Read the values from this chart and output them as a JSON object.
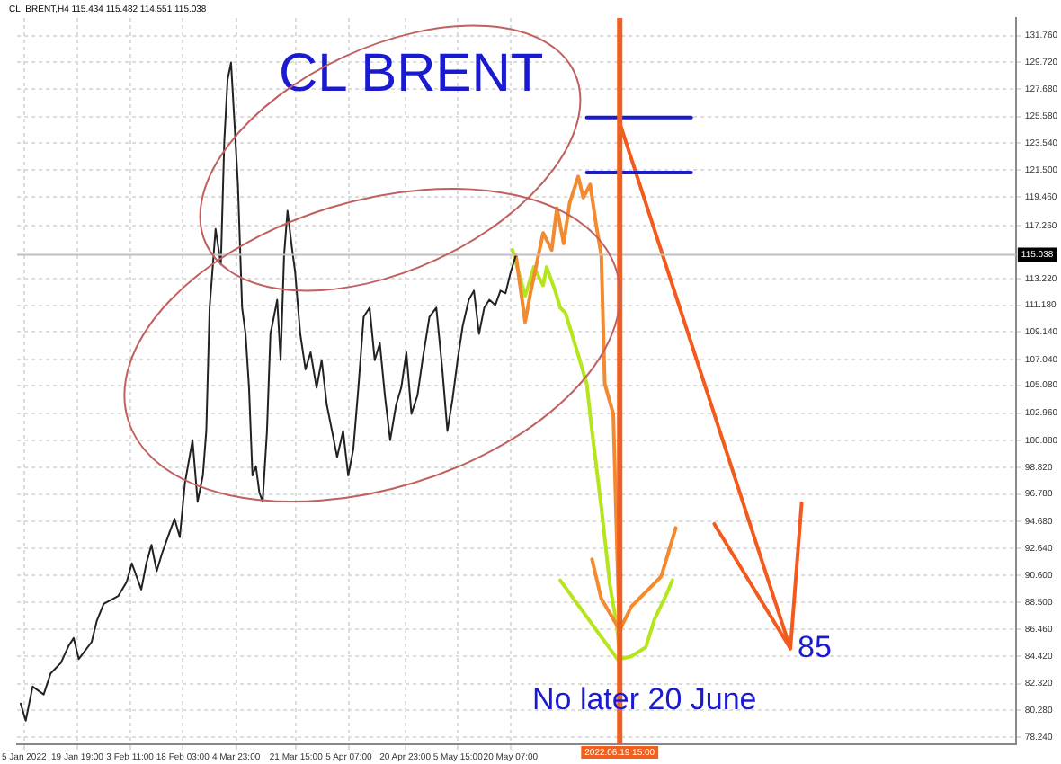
{
  "chart_data": {
    "type": "line",
    "title": "CL_BRENT,H4 115.434 115.482 114.551 115.038",
    "annotations": [
      "CL BRENT",
      "No later 20 June",
      {
        "text": "85",
        "x": "2022-08-06T02:00",
        "y": 85
      }
    ],
    "series": [
      {
        "color": "#222222",
        "x": [
          "2022-01-04T01:00",
          "2022-01-05T11:00",
          "2022-01-07T09:00",
          "2022-01-10T11:00",
          "2022-01-12T09:00",
          "2022-01-15T05:00",
          "2022-01-17T09:00",
          "2022-01-18T19:00",
          "2022-01-20T05:00",
          "2022-01-23T19:00",
          "2022-01-25T05:00",
          "2022-01-27T03:00",
          "2022-01-31T04:00",
          "2022-02-02T13:00",
          "2022-02-03T23:00",
          "2022-02-06T14:00",
          "2022-02-08T00:00",
          "2022-02-09T10:00",
          "2022-02-10T21:00",
          "2022-02-12T07:00",
          "2022-02-13T23:00",
          "2022-02-15T20:00",
          "2022-02-17T07:00",
          "2022-02-18T17:00",
          "2022-02-20T20:00",
          "2022-02-22T06:00",
          "2022-02-23T17:00",
          "2022-02-24T16:00",
          "2022-02-25T14:00",
          "2022-02-27T06:00",
          "2022-02-28T17:00",
          "2022-03-01T16:00",
          "2022-03-02T14:00",
          "2022-03-03T13:00",
          "2022-03-04T12:00",
          "2022-03-05T11:00",
          "2022-03-06T15:00",
          "2022-03-07T14:00",
          "2022-03-08T13:00",
          "2022-03-09T12:00",
          "2022-03-10T11:00",
          "2022-03-11T10:00",
          "2022-03-12T08:00",
          "2022-03-13T13:00",
          "2022-03-14T12:00",
          "2022-03-15T11:00",
          "2022-03-16T09:00",
          "2022-03-17T08:00",
          "2022-03-18T07:00",
          "2022-03-19T06:00",
          "2022-03-20T10:00",
          "2022-03-21T09:00",
          "2022-03-22T19:00",
          "2022-03-24T06:00",
          "2022-03-25T16:00",
          "2022-03-27T08:00",
          "2022-03-28T18:00",
          "2022-03-30T04:00",
          "2022-03-31T15:00",
          "2022-04-02T01:00",
          "2022-04-03T17:00",
          "2022-04-05T03:00",
          "2022-04-06T13:00",
          "2022-04-07T23:00",
          "2022-04-09T10:00",
          "2022-04-11T02:00",
          "2022-04-12T12:00",
          "2022-04-13T22:00",
          "2022-04-15T08:00",
          "2022-04-16T19:00",
          "2022-04-18T11:00",
          "2022-04-19T21:00",
          "2022-04-21T07:00",
          "2022-04-22T17:00",
          "2022-04-24T09:00",
          "2022-04-25T19:00",
          "2022-04-27T17:00",
          "2022-04-29T15:00",
          "2022-05-01T07:00",
          "2022-05-02T17:00",
          "2022-05-04T03:00",
          "2022-05-05T13:00",
          "2022-05-06T23:00",
          "2022-05-08T16:00",
          "2022-05-10T02:00",
          "2022-05-11T12:00",
          "2022-05-12T23:00",
          "2022-05-14T09:00",
          "2022-05-16T01:00",
          "2022-05-17T11:00",
          "2022-05-18T21:00",
          "2022-05-20T07:00",
          "2022-05-21T18:00"
        ],
        "values": [
          80.8,
          79.5,
          82.1,
          81.5,
          83.1,
          83.9,
          85.2,
          85.8,
          84.2,
          85.5,
          87.1,
          88.4,
          89.0,
          90.1,
          91.5,
          89.5,
          91.5,
          92.9,
          90.9,
          92.2,
          93.5,
          94.9,
          93.5,
          97.6,
          100.9,
          96.2,
          98.2,
          101.6,
          111.0,
          117.0,
          114.3,
          123.7,
          128.4,
          129.7,
          125.1,
          120.4,
          111.0,
          109.0,
          104.9,
          98.2,
          98.9,
          96.9,
          96.2,
          101.6,
          109.0,
          110.3,
          111.6,
          107.0,
          115.0,
          118.4,
          115.7,
          113.7,
          109.0,
          106.3,
          107.6,
          104.9,
          107.0,
          103.6,
          101.6,
          99.6,
          101.6,
          98.2,
          100.2,
          104.9,
          110.3,
          111.0,
          107.0,
          108.3,
          104.3,
          100.9,
          103.6,
          104.9,
          107.6,
          102.9,
          104.3,
          107.0,
          110.3,
          111.0,
          106.3,
          101.6,
          104.0,
          107.0,
          109.6,
          111.6,
          112.3,
          109.0,
          111.0,
          111.6,
          111.2,
          112.3,
          112.1,
          113.7,
          115.0
        ]
      },
      {
        "color": "#f28a30",
        "x": [
          "2022-05-21T18:00",
          "2022-05-24T08:00",
          "2022-05-25T19:00",
          "2022-05-29T08:00",
          "2022-05-31T17:00",
          "2022-06-02T04:00",
          "2022-06-04T01:00",
          "2022-06-05T17:00",
          "2022-06-08T02:00",
          "2022-06-09T12:00",
          "2022-06-11T10:00",
          "2022-06-13T02:00",
          "2022-06-14T12:00",
          "2022-06-15T11:00",
          "2022-06-17T20:00",
          "2022-06-18T19:00",
          "2022-06-19T06:00",
          "2022-06-19T15:00",
          "2022-06-22T20:00",
          "2022-07-01T04:00",
          "2022-07-05T05:00"
        ],
        "values": [
          115.0,
          109.9,
          112.1,
          116.7,
          115.4,
          118.6,
          115.9,
          119.0,
          121.0,
          119.4,
          120.4,
          117.3,
          115.0,
          105.2,
          102.9,
          93.5,
          89.1,
          86.4,
          88.2,
          90.5,
          94.2
        ]
      },
      {
        "color": "#f28a30",
        "x": [
          "2022-06-11T22:00",
          "2022-06-14T12:00",
          "2022-06-19T15:00"
        ],
        "values": [
          91.8,
          88.8,
          86.4
        ]
      },
      {
        "color": "#b5e61d",
        "x": [
          "2022-05-20T19:00",
          "2022-05-24T08:00",
          "2022-05-26T18:00",
          "2022-05-29T08:00",
          "2022-05-30T07:00",
          "2022-06-01T16:00",
          "2022-06-03T02:00",
          "2022-06-04T13:00",
          "2022-06-08T02:00",
          "2022-06-10T11:00",
          "2022-06-11T22:00",
          "2022-06-14T12:00",
          "2022-06-16T21:00",
          "2022-06-18T19:00",
          "2022-06-19T18:00",
          "2022-06-22T20:00",
          "2022-06-26T21:00",
          "2022-06-29T06:00",
          "2022-07-02T14:00",
          "2022-07-04T06:00"
        ],
        "values": [
          115.4,
          111.9,
          114.1,
          112.7,
          114.1,
          112.3,
          111.0,
          110.6,
          107.4,
          105.2,
          101.6,
          95.8,
          89.9,
          86.8,
          84.2,
          84.4,
          85.1,
          87.2,
          89.1,
          90.2
        ]
      },
      {
        "color": "#b5e61d",
        "x": [
          "2022-06-03T02:00",
          "2022-06-19T12:00"
        ],
        "values": [
          90.2,
          84.0
        ]
      },
      {
        "color": "#1a1ad0",
        "x": [
          "2022-06-10T11:00",
          "2022-07-09T12:00"
        ],
        "values": [
          125.5,
          125.5
        ]
      },
      {
        "color": "#1a1ad0",
        "x": [
          "2022-06-10T11:00",
          "2022-07-09T12:00"
        ],
        "values": [
          121.3,
          121.3
        ]
      },
      {
        "color": "#f25a1e",
        "x": [
          "2022-06-19T15:00",
          "2022-08-06T02:00",
          "2022-08-09T05:00"
        ],
        "values": [
          125.1,
          85,
          96.1
        ]
      },
      {
        "color": "#f25a1e",
        "x": [
          "2022-07-15T22:00",
          "2022-08-06T02:00"
        ],
        "values": [
          94.5,
          85
        ]
      }
    ],
    "xlim": [
      "2022-01-03T02:00",
      "2022-10-07T19:00"
    ],
    "xticks": [
      {
        "value": "2022-01-05",
        "label": "5 Jan 2022"
      },
      {
        "value": "2022-01-19T19:00",
        "label": "19 Jan 19:00"
      },
      {
        "value": "2022-02-03T11:00",
        "label": "3 Feb 11:00"
      },
      {
        "value": "2022-02-18T03:00",
        "label": "18 Feb 03:00"
      },
      {
        "value": "2022-03-04T23:00",
        "label": "4 Mar 23:00"
      },
      {
        "value": "2022-03-21T15:00",
        "label": "21 Mar 15:00"
      },
      {
        "value": "2022-04-05T07:00",
        "label": "5 Apr 07:00"
      },
      {
        "value": "2022-04-20T23:00",
        "label": "20 Apr 23:00"
      },
      {
        "value": "2022-05-05T15:00",
        "label": "5 May 15:00"
      },
      {
        "value": "2022-05-20T07:00",
        "label": "20 May 07:00"
      }
    ],
    "ylim": [
      77.7,
      133.1
    ],
    "yticks": [
      {
        "value": 78.24,
        "label": "78.240"
      },
      {
        "value": 80.28,
        "label": "80.280"
      },
      {
        "value": 82.32,
        "label": "82.320"
      },
      {
        "value": 84.42,
        "label": "84.420"
      },
      {
        "value": 86.46,
        "label": "86.460"
      },
      {
        "value": 88.5,
        "label": "88.500"
      },
      {
        "value": 90.6,
        "label": "90.600"
      },
      {
        "value": 92.64,
        "label": "92.640"
      },
      {
        "value": 94.68,
        "label": "94.680"
      },
      {
        "value": 96.78,
        "label": "96.780"
      },
      {
        "value": 98.82,
        "label": "98.820"
      },
      {
        "value": 100.88,
        "label": "100.880"
      },
      {
        "value": 102.96,
        "label": "102.960"
      },
      {
        "value": 105.08,
        "label": "105.080"
      },
      {
        "value": 107.04,
        "label": "107.040"
      },
      {
        "value": 109.14,
        "label": "109.140"
      },
      {
        "value": 111.18,
        "label": "111.180"
      },
      {
        "value": 113.22,
        "label": "113.220"
      },
      {
        "value": 117.26,
        "label": "117.260"
      },
      {
        "value": 119.46,
        "label": "119.460"
      },
      {
        "value": 121.5,
        "label": "121.500"
      },
      {
        "value": 123.54,
        "label": "123.540"
      },
      {
        "value": 125.58,
        "label": "125.580"
      },
      {
        "value": 127.68,
        "label": "127.680"
      },
      {
        "value": 129.72,
        "label": "129.720"
      },
      {
        "value": 131.76,
        "label": "131.760"
      }
    ],
    "ref_lines": [
      {
        "axis": "y",
        "value": 115.038,
        "label": "115.038",
        "color": "#c0c0c0"
      },
      {
        "axis": "x",
        "value": "2022-06-19T15:00",
        "label": "2022.06.19 15:00",
        "color": "#f06020"
      }
    ],
    "grid": true,
    "legend": false,
    "marker": "none",
    "line_style": "solid"
  }
}
